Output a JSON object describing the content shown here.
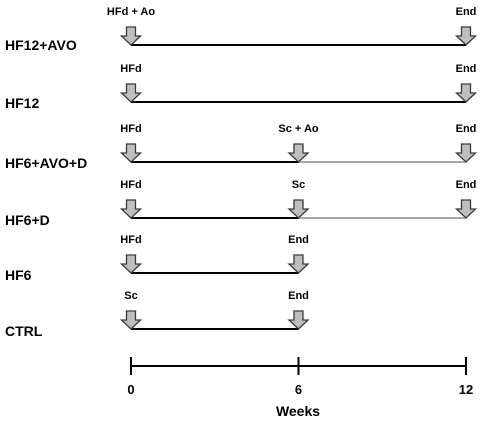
{
  "groups": [
    {
      "label": "HF12+AVO",
      "segments": [
        {
          "from": 0,
          "to": 12,
          "tone": "dark"
        }
      ],
      "markers": [
        {
          "week": 0,
          "label": "HFd + Ao"
        },
        {
          "week": 12,
          "label": "End"
        }
      ]
    },
    {
      "label": "HF12",
      "segments": [
        {
          "from": 0,
          "to": 12,
          "tone": "dark"
        }
      ],
      "markers": [
        {
          "week": 0,
          "label": "HFd"
        },
        {
          "week": 12,
          "label": "End"
        }
      ]
    },
    {
      "label": "HF6+AVO+D",
      "segments": [
        {
          "from": 0,
          "to": 6,
          "tone": "dark"
        },
        {
          "from": 6,
          "to": 12,
          "tone": "light"
        }
      ],
      "markers": [
        {
          "week": 0,
          "label": "HFd"
        },
        {
          "week": 6,
          "label": "Sc + Ao"
        },
        {
          "week": 12,
          "label": "End"
        }
      ]
    },
    {
      "label": "HF6+D",
      "segments": [
        {
          "from": 0,
          "to": 6,
          "tone": "dark"
        },
        {
          "from": 6,
          "to": 12,
          "tone": "light"
        }
      ],
      "markers": [
        {
          "week": 0,
          "label": "HFd"
        },
        {
          "week": 6,
          "label": "Sc"
        },
        {
          "week": 12,
          "label": "End"
        }
      ]
    },
    {
      "label": "HF6",
      "segments": [
        {
          "from": 0,
          "to": 6,
          "tone": "dark"
        }
      ],
      "markers": [
        {
          "week": 0,
          "label": "HFd"
        },
        {
          "week": 6,
          "label": "End"
        }
      ]
    },
    {
      "label": "CTRL",
      "segments": [
        {
          "from": 0,
          "to": 6,
          "tone": "dark"
        }
      ],
      "markers": [
        {
          "week": 0,
          "label": "Sc"
        },
        {
          "week": 6,
          "label": "End"
        }
      ]
    }
  ],
  "axis": {
    "title": "Weeks",
    "ticks": [
      0,
      6,
      12
    ],
    "range": [
      0,
      12
    ]
  },
  "colors": {
    "dark": "#000000",
    "light": "#a6a6a6",
    "arrow_fill": "#bfbfbf",
    "arrow_stroke": "#3a3a3a"
  }
}
